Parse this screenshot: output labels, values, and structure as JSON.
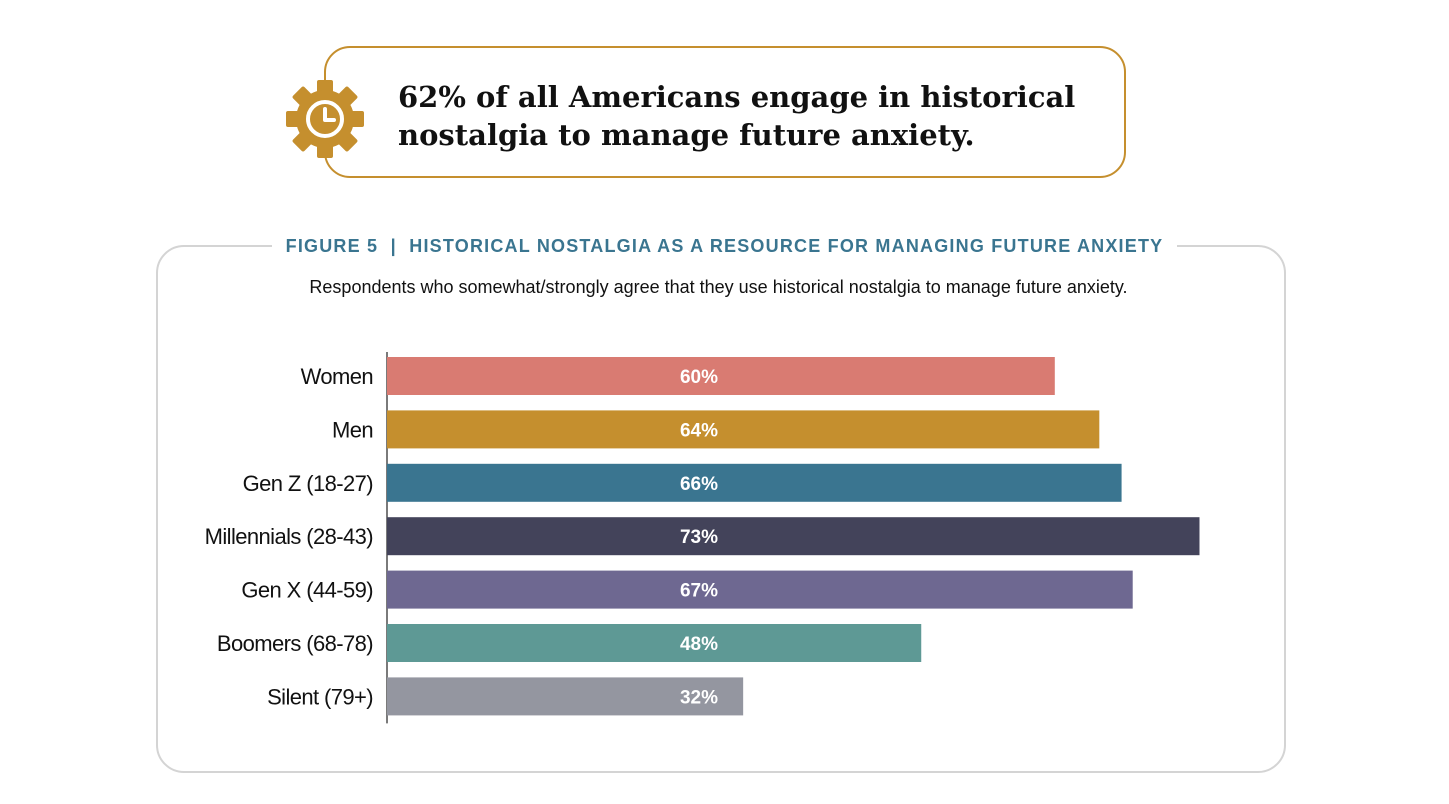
{
  "callout": {
    "icon": "gear-clock-icon",
    "icon_color": "#c58f2e",
    "line1": "62% of all Americans engage in historical",
    "line2": "nostalgia to manage future anxiety."
  },
  "figure": {
    "title": "FIGURE 5  |  HISTORICAL NOSTALGIA AS A RESOURCE FOR MANAGING FUTURE ANXIETY",
    "subtitle": "Respondents who somewhat/strongly agree that they use historical nostalgia to manage future anxiety."
  },
  "chart_data": {
    "type": "bar",
    "orientation": "horizontal",
    "title": "",
    "xlabel": "",
    "ylabel": "",
    "xlim": [
      0,
      100
    ],
    "grid": false,
    "categories": [
      "Women",
      "Men",
      "Gen Z (18-27)",
      "Millennials (28-43)",
      "Gen X (44-59)",
      "Boomers (68-78)",
      "Silent (79+)"
    ],
    "values": [
      60,
      64,
      66,
      73,
      67,
      48,
      32
    ],
    "value_labels": [
      "60%",
      "64%",
      "66%",
      "73%",
      "67%",
      "48%",
      "32%"
    ],
    "colors": [
      "#d97b72",
      "#c58f2e",
      "#3a7590",
      "#43435a",
      "#6e6891",
      "#5e9995",
      "#9496a0"
    ]
  }
}
